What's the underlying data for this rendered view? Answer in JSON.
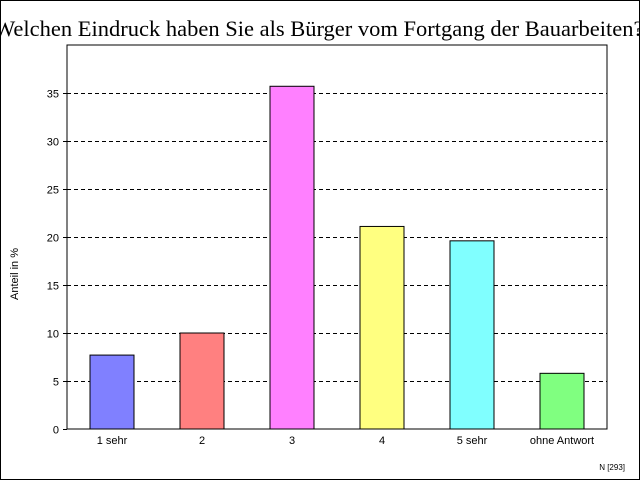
{
  "chart_data": {
    "type": "bar",
    "title": "Welchen Eindruck haben Sie als Bürger vom Fortgang der Bauarbeiten?",
    "xlabel": "",
    "ylabel": "Anteil in %",
    "categories": [
      "1 sehr",
      "2",
      "3",
      "4",
      "5 sehr",
      "ohne Antwort"
    ],
    "values": [
      7.7,
      10.0,
      35.7,
      21.1,
      19.6,
      5.8
    ],
    "colors": [
      "#8080ff",
      "#ff8080",
      "#ff80ff",
      "#ffff80",
      "#80ffff",
      "#80ff80"
    ],
    "ylim": [
      0,
      40
    ],
    "yticks": [
      0,
      5,
      10,
      15,
      20,
      25,
      30,
      35
    ],
    "grid": "horizontal dashed",
    "note": "N [293]"
  }
}
